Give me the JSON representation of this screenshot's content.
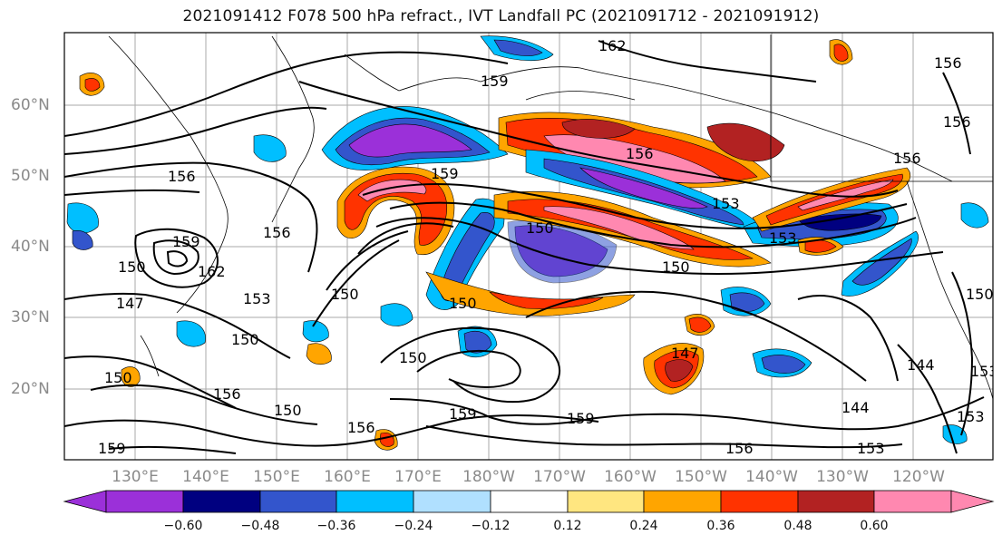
{
  "title": "2021091412 F078 500 hPa refract., IVT Landfall PC (2021091712 - 2021091912)",
  "map": {
    "lon_labels": [
      "130°E",
      "140°E",
      "150°E",
      "160°E",
      "170°E",
      "180°W",
      "170°W",
      "160°W",
      "150°W",
      "140°W",
      "130°W",
      "120°W"
    ],
    "lat_labels": [
      "60°N",
      "50°N",
      "40°N",
      "30°N",
      "20°N"
    ],
    "contour_labels": [
      "162",
      "159",
      "156",
      "156",
      "156",
      "159",
      "153",
      "150",
      "147",
      "150",
      "153",
      "150",
      "156",
      "150",
      "159",
      "150",
      "156",
      "159",
      "156",
      "159",
      "159",
      "153",
      "156",
      "150",
      "150",
      "150",
      "144",
      "144",
      "153",
      "156",
      "162",
      "153",
      "150",
      "150",
      "153",
      "156",
      "147"
    ]
  },
  "colorbar": {
    "ticks": [
      "−0.60",
      "−0.48",
      "−0.36",
      "−0.24",
      "−0.12",
      "0.12",
      "0.24",
      "0.36",
      "0.48",
      "0.60"
    ],
    "colors": [
      "#9b30d9",
      "#000080",
      "#3355cc",
      "#00bfff",
      "#b0e0ff",
      "#ffffff",
      "#ffe680",
      "#ffa500",
      "#ff3300",
      "#b22222",
      "#ff88b0",
      "#ff88b0"
    ]
  }
}
